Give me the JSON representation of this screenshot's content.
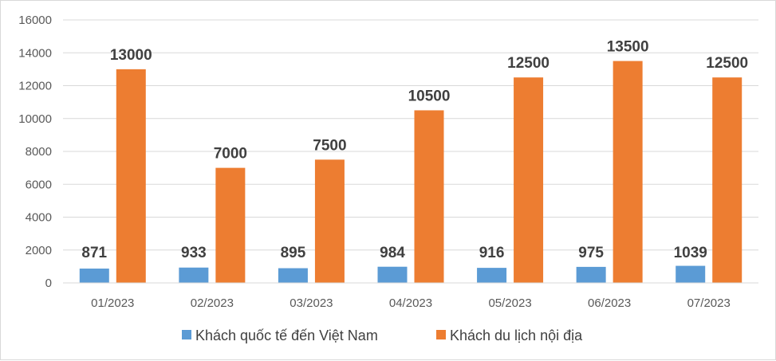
{
  "chart_data": {
    "type": "bar",
    "categories": [
      "01/2023",
      "02/2023",
      "03/2023",
      "04/2023",
      "05/2023",
      "06/2023",
      "07/2023"
    ],
    "series": [
      {
        "name": "Khách quốc tế đến Việt Nam",
        "values": [
          871,
          933,
          895,
          984,
          916,
          975,
          1039
        ],
        "color": "#5B9BD5"
      },
      {
        "name": "Khách du lịch nội địa",
        "values": [
          13000,
          7000,
          7500,
          10500,
          12500,
          13500,
          12500
        ],
        "color": "#ED7D31"
      }
    ],
    "ylim": [
      0,
      16000
    ],
    "yticks": [
      "0",
      "2000",
      "4000",
      "6000",
      "8000",
      "10000",
      "12000",
      "14000",
      "16000"
    ],
    "grid": true,
    "legend": "bottom",
    "data_labels": true,
    "title": "",
    "xlabel": "",
    "ylabel": ""
  }
}
